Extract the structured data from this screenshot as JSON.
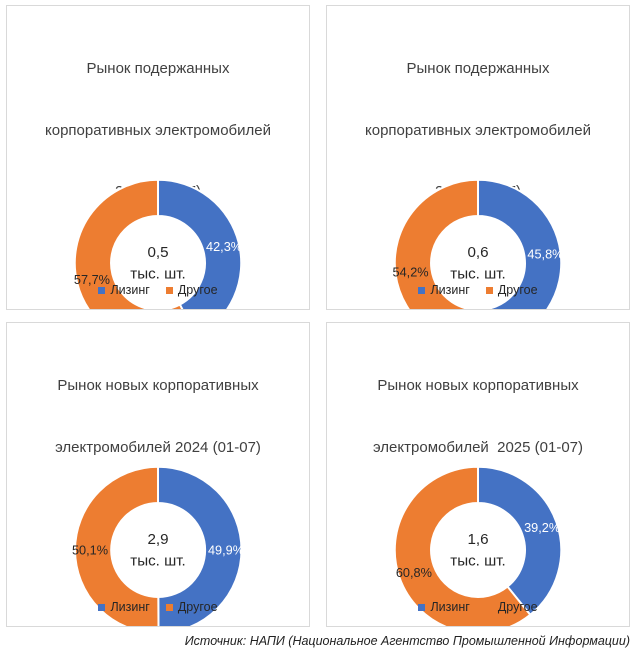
{
  "page": {
    "source_note": "Источник: НАПИ (Национальное Агентство Промышленной Информации)"
  },
  "colors": {
    "leasing_blue": "#4472C4",
    "other_orange": "#ED7D31",
    "panel_border": "#D9D9D9",
    "title_text": "#404040",
    "label_on_blue": "#FFFFFF",
    "label_on_orange": "#262626"
  },
  "chart_data": [
    {
      "type": "pie",
      "subtype": "donut",
      "title": "Рынок подержанных корпоративных электромобилей 2024 (01-07)",
      "title_lines": [
        "Рынок подержанных",
        "корпоративных электромобилей",
        "2024 (01-07)"
      ],
      "center_value": "0,5",
      "center_unit": "тыс. шт.",
      "start_angle_deg": 0,
      "direction": "clockwise",
      "legend_position": "bottom",
      "series": [
        {
          "name": "Лизинг",
          "pct": 42.3,
          "label": "42,3%",
          "color": "#4472C4",
          "label_color": "#FFFFFF"
        },
        {
          "name": "Другое",
          "pct": 57.7,
          "label": "57,7%",
          "color": "#ED7D31",
          "label_color": "#262626"
        }
      ]
    },
    {
      "type": "pie",
      "subtype": "donut",
      "title": "Рынок подержанных корпоративных электромобилей 2025 (01-07)",
      "title_lines": [
        "Рынок подержанных",
        "корпоративных электромобилей",
        "2025 (01-07)"
      ],
      "center_value": "0,6",
      "center_unit": "тыс. шт.",
      "start_angle_deg": 0,
      "direction": "clockwise",
      "legend_position": "bottom",
      "series": [
        {
          "name": "Лизинг",
          "pct": 45.8,
          "label": "45,8%",
          "color": "#4472C4",
          "label_color": "#FFFFFF"
        },
        {
          "name": "Другое",
          "pct": 54.2,
          "label": "54,2%",
          "color": "#ED7D31",
          "label_color": "#262626"
        }
      ]
    },
    {
      "type": "pie",
      "subtype": "donut",
      "title": "Рынок новых корпоративных электромобилей 2024 (01-07)",
      "title_lines": [
        "Рынок новых корпоративных",
        "электромобилей 2024 (01-07)"
      ],
      "center_value": "2,9",
      "center_unit": "тыс. шт.",
      "start_angle_deg": 0,
      "direction": "clockwise",
      "legend_position": "bottom",
      "series": [
        {
          "name": "Лизинг",
          "pct": 49.9,
          "label": "49,9%",
          "color": "#4472C4",
          "label_color": "#FFFFFF"
        },
        {
          "name": "Другое",
          "pct": 50.1,
          "label": "50,1%",
          "color": "#ED7D31",
          "label_color": "#262626"
        }
      ]
    },
    {
      "type": "pie",
      "subtype": "donut",
      "title": "Рынок новых корпоративных электромобилей  2025 (01-07)",
      "title_lines": [
        "Рынок новых корпоративных",
        "электромобилей  2025 (01-07)"
      ],
      "center_value": "1,6",
      "center_unit": "тыс. шт.",
      "start_angle_deg": 0,
      "direction": "clockwise",
      "legend_position": "bottom",
      "series": [
        {
          "name": "Лизинг",
          "pct": 39.2,
          "label": "39,2%",
          "color": "#4472C4",
          "label_color": "#FFFFFF"
        },
        {
          "name": "Другое",
          "pct": 60.8,
          "label": "60,8%",
          "color": "#ED7D31",
          "label_color": "#262626"
        }
      ]
    }
  ]
}
